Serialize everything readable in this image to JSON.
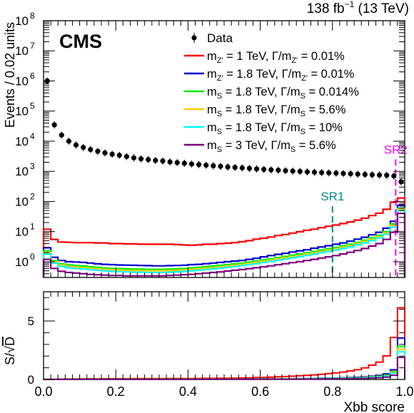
{
  "header": {
    "lumi_text": "138 fb",
    "lumi_sup": "−1",
    "energy_text": " (13 TeV)",
    "experiment": "CMS"
  },
  "chart_data": [
    {
      "type": "line",
      "panel": "main",
      "xlabel": "",
      "ylabel": "Events / 0.02 units",
      "xlim": [
        0.0,
        1.0
      ],
      "ylim": [
        0.3,
        100000000
      ],
      "yscale": "log",
      "yticks": [
        {
          "value": 1,
          "base": "10",
          "exp": "0"
        },
        {
          "value": 10,
          "base": "10",
          "exp": "1"
        },
        {
          "value": 100,
          "base": "10",
          "exp": "2"
        },
        {
          "value": 1000,
          "base": "10",
          "exp": "3"
        },
        {
          "value": 10000,
          "base": "10",
          "exp": "4"
        },
        {
          "value": 100000,
          "base": "10",
          "exp": "5"
        },
        {
          "value": 1000000,
          "base": "10",
          "exp": "6"
        },
        {
          "value": 10000000,
          "base": "10",
          "exp": "7"
        },
        {
          "value": 100000000,
          "base": "10",
          "exp": "8"
        }
      ],
      "legend_position": "top-right",
      "data_points": {
        "name": "Data",
        "x": [
          0.01,
          0.03,
          0.05,
          0.07,
          0.09,
          0.11,
          0.13,
          0.15,
          0.17,
          0.19,
          0.21,
          0.23,
          0.25,
          0.27,
          0.29,
          0.31,
          0.33,
          0.35,
          0.37,
          0.39,
          0.41,
          0.43,
          0.45,
          0.47,
          0.49,
          0.51,
          0.53,
          0.55,
          0.57,
          0.59,
          0.61,
          0.63,
          0.65,
          0.67,
          0.69,
          0.71,
          0.73,
          0.75,
          0.77,
          0.79,
          0.81,
          0.83,
          0.85,
          0.87,
          0.89,
          0.91,
          0.93,
          0.95,
          0.97,
          0.99
        ],
        "y": [
          1000000,
          35000,
          16000,
          10000,
          7500,
          6200,
          5300,
          4600,
          4100,
          3700,
          3400,
          3100,
          2800,
          2600,
          2450,
          2300,
          2200,
          2050,
          1950,
          1850,
          1750,
          1680,
          1600,
          1530,
          1460,
          1400,
          1350,
          1300,
          1250,
          1200,
          1160,
          1120,
          1090,
          1050,
          1020,
          990,
          960,
          935,
          910,
          890,
          870,
          850,
          830,
          810,
          790,
          770,
          755,
          740,
          700,
          450
        ]
      },
      "bin_edges": [
        0.0,
        0.02,
        0.04,
        0.06,
        0.08,
        0.1,
        0.12,
        0.14,
        0.16,
        0.18,
        0.2,
        0.22,
        0.24,
        0.26,
        0.28,
        0.3,
        0.32,
        0.34,
        0.36,
        0.38,
        0.4,
        0.42,
        0.44,
        0.46,
        0.48,
        0.5,
        0.52,
        0.54,
        0.56,
        0.58,
        0.6,
        0.62,
        0.64,
        0.66,
        0.68,
        0.7,
        0.72,
        0.74,
        0.76,
        0.78,
        0.8,
        0.82,
        0.84,
        0.86,
        0.88,
        0.9,
        0.92,
        0.94,
        0.96,
        0.98,
        1.0
      ],
      "series": [
        {
          "label_main": "m",
          "label_sub": "Z′",
          "label_rest": " = 1 TeV,  Γ/m",
          "label_sub2": "Z′",
          "label_end": " = 0.01%",
          "color": "#ff0000",
          "values": [
            12,
            5.5,
            4.5,
            4.4,
            4.3,
            4.3,
            4.3,
            4.2,
            4.2,
            4.0,
            4.0,
            3.9,
            3.9,
            3.8,
            3.8,
            3.8,
            3.8,
            3.8,
            3.7,
            3.6,
            3.5,
            3.6,
            3.8,
            3.8,
            4.0,
            4.1,
            4.3,
            4.6,
            5.0,
            5.6,
            6.0,
            6.6,
            7.4,
            8.0,
            8.9,
            9.9,
            11,
            12,
            13.5,
            15,
            16.5,
            18.5,
            21,
            24,
            28,
            34,
            41,
            55,
            95,
            130
          ]
        },
        {
          "label_main": "m",
          "label_sub": "Z′",
          "label_rest": " = 1.8 TeV,  Γ/m",
          "label_sub2": "Z′",
          "label_end": " = 0.01%",
          "color": "#0000d0",
          "values": [
            2.9,
            1.4,
            1.1,
            1.0,
            0.98,
            0.95,
            0.9,
            0.85,
            0.82,
            0.8,
            0.78,
            0.77,
            0.76,
            0.75,
            0.74,
            0.73,
            0.73,
            0.74,
            0.75,
            0.76,
            0.8,
            0.82,
            0.86,
            0.9,
            0.95,
            1.0,
            1.05,
            1.1,
            1.2,
            1.3,
            1.45,
            1.6,
            1.75,
            1.9,
            2.1,
            2.3,
            2.5,
            2.8,
            3.1,
            3.4,
            3.8,
            4.2,
            4.8,
            5.6,
            6.5,
            7.8,
            9.5,
            13,
            22,
            75
          ]
        },
        {
          "label_main": "m",
          "label_sub": "S",
          "label_rest": " = 1.8 TeV,  Γ/m",
          "label_sub2": "S",
          "label_end": " = 0.014%",
          "color": "#00ee00",
          "values": [
            2.3,
            1.1,
            0.85,
            0.78,
            0.75,
            0.72,
            0.68,
            0.65,
            0.62,
            0.6,
            0.59,
            0.58,
            0.57,
            0.57,
            0.56,
            0.56,
            0.56,
            0.57,
            0.58,
            0.6,
            0.62,
            0.65,
            0.68,
            0.72,
            0.76,
            0.8,
            0.85,
            0.9,
            0.98,
            1.05,
            1.15,
            1.25,
            1.38,
            1.5,
            1.65,
            1.8,
            2.0,
            2.2,
            2.45,
            2.7,
            3.0,
            3.4,
            3.8,
            4.4,
            5.2,
            6.2,
            7.6,
            10,
            18,
            60
          ]
        },
        {
          "label_main": "m",
          "label_sub": "S",
          "label_rest": " = 1.8 TeV,  Γ/m",
          "label_sub2": "S",
          "label_end": " = 5.6%",
          "color": "#ffcc00",
          "values": [
            2.0,
            1.0,
            0.78,
            0.7,
            0.67,
            0.64,
            0.61,
            0.58,
            0.56,
            0.54,
            0.53,
            0.52,
            0.51,
            0.51,
            0.5,
            0.5,
            0.5,
            0.51,
            0.52,
            0.54,
            0.56,
            0.58,
            0.61,
            0.64,
            0.68,
            0.72,
            0.76,
            0.82,
            0.88,
            0.95,
            1.04,
            1.13,
            1.24,
            1.35,
            1.48,
            1.62,
            1.8,
            2.0,
            2.2,
            2.45,
            2.7,
            3.05,
            3.45,
            4.0,
            4.7,
            5.6,
            6.8,
            9.0,
            16,
            55
          ]
        },
        {
          "label_main": "m",
          "label_sub": "S",
          "label_rest": " = 1.8 TeV,  Γ/m",
          "label_sub2": "S",
          "label_end": " = 10%",
          "color": "#00ffff",
          "values": [
            1.8,
            0.9,
            0.7,
            0.63,
            0.6,
            0.57,
            0.55,
            0.52,
            0.5,
            0.48,
            0.47,
            0.46,
            0.45,
            0.45,
            0.44,
            0.44,
            0.44,
            0.45,
            0.46,
            0.48,
            0.5,
            0.52,
            0.55,
            0.58,
            0.61,
            0.65,
            0.69,
            0.74,
            0.8,
            0.86,
            0.94,
            1.02,
            1.12,
            1.22,
            1.34,
            1.46,
            1.62,
            1.8,
            2.0,
            2.2,
            2.45,
            2.75,
            3.1,
            3.6,
            4.2,
            5.0,
            6.1,
            8.2,
            14,
            50
          ]
        },
        {
          "label_main": "m",
          "label_sub": "S",
          "label_rest": " = 3 TeV,  Γ/m",
          "label_sub2": "S",
          "label_end": " = 5.6%",
          "color": "#7f007f",
          "values": [
            1.2,
            0.6,
            0.48,
            0.44,
            0.42,
            0.4,
            0.38,
            0.37,
            0.36,
            0.35,
            0.35,
            0.34,
            0.34,
            0.34,
            0.34,
            0.34,
            0.34,
            0.35,
            0.36,
            0.37,
            0.38,
            0.4,
            0.42,
            0.44,
            0.46,
            0.49,
            0.52,
            0.55,
            0.59,
            0.63,
            0.68,
            0.73,
            0.79,
            0.86,
            0.93,
            1.0,
            1.1,
            1.2,
            1.32,
            1.45,
            1.6,
            1.8,
            2.05,
            2.35,
            2.75,
            3.3,
            4.0,
            5.5,
            9.5,
            40
          ]
        }
      ],
      "regions": [
        {
          "label": "SR1",
          "x": 0.8,
          "color": "#008b8b",
          "y_top": 70
        },
        {
          "label": "SR2",
          "x": 0.975,
          "color": "#ff00ff",
          "y_top": 2500
        }
      ]
    },
    {
      "type": "line",
      "panel": "ratio",
      "xlabel": "Xbb score",
      "ylabel_prefix": "S/",
      "ylabel_root": "D",
      "xlim": [
        0.0,
        1.0
      ],
      "ylim": [
        0,
        7.5
      ],
      "xticks": [
        "0.0",
        "0.2",
        "0.4",
        "0.6",
        "0.8",
        "1.0"
      ],
      "yticks": [
        "0",
        "5"
      ],
      "series": [
        {
          "color": "#ff0000",
          "values": [
            0.012,
            0.03,
            0.035,
            0.044,
            0.05,
            0.055,
            0.06,
            0.062,
            0.066,
            0.066,
            0.069,
            0.07,
            0.074,
            0.075,
            0.077,
            0.079,
            0.081,
            0.084,
            0.084,
            0.084,
            0.084,
            0.088,
            0.095,
            0.097,
            0.105,
            0.11,
            0.117,
            0.128,
            0.141,
            0.162,
            0.176,
            0.197,
            0.224,
            0.247,
            0.279,
            0.315,
            0.355,
            0.392,
            0.447,
            0.503,
            0.559,
            0.634,
            0.729,
            0.843,
            0.996,
            1.225,
            1.49,
            2.02,
            3.59,
            6.13
          ]
        },
        {
          "color": "#0000d0",
          "values": [
            0.003,
            0.007,
            0.009,
            0.01,
            0.011,
            0.012,
            0.012,
            0.013,
            0.013,
            0.013,
            0.013,
            0.014,
            0.014,
            0.015,
            0.015,
            0.015,
            0.016,
            0.016,
            0.017,
            0.018,
            0.019,
            0.02,
            0.021,
            0.023,
            0.025,
            0.027,
            0.029,
            0.031,
            0.034,
            0.038,
            0.043,
            0.048,
            0.053,
            0.059,
            0.066,
            0.073,
            0.081,
            0.092,
            0.103,
            0.114,
            0.129,
            0.144,
            0.167,
            0.197,
            0.231,
            0.281,
            0.346,
            0.478,
            0.831,
            3.54
          ]
        },
        {
          "color": "#00ee00",
          "values": [
            0.002,
            0.006,
            0.007,
            0.008,
            0.009,
            0.009,
            0.009,
            0.01,
            0.01,
            0.01,
            0.01,
            0.01,
            0.011,
            0.011,
            0.011,
            0.012,
            0.012,
            0.013,
            0.013,
            0.014,
            0.015,
            0.016,
            0.017,
            0.018,
            0.02,
            0.021,
            0.023,
            0.025,
            0.028,
            0.03,
            0.034,
            0.037,
            0.042,
            0.046,
            0.052,
            0.057,
            0.065,
            0.072,
            0.081,
            0.091,
            0.102,
            0.117,
            0.132,
            0.155,
            0.185,
            0.223,
            0.277,
            0.368,
            0.68,
            2.83
          ]
        },
        {
          "color": "#ffcc00",
          "values": [
            0.002,
            0.005,
            0.006,
            0.007,
            0.008,
            0.008,
            0.008,
            0.009,
            0.009,
            0.009,
            0.009,
            0.009,
            0.01,
            0.01,
            0.01,
            0.01,
            0.011,
            0.011,
            0.012,
            0.013,
            0.013,
            0.014,
            0.015,
            0.016,
            0.018,
            0.019,
            0.021,
            0.023,
            0.025,
            0.027,
            0.031,
            0.034,
            0.038,
            0.042,
            0.046,
            0.051,
            0.058,
            0.065,
            0.073,
            0.082,
            0.092,
            0.105,
            0.12,
            0.141,
            0.167,
            0.202,
            0.247,
            0.331,
            0.605,
            2.59
          ]
        },
        {
          "color": "#00ffff",
          "values": [
            0.002,
            0.005,
            0.006,
            0.006,
            0.007,
            0.007,
            0.008,
            0.008,
            0.008,
            0.008,
            0.008,
            0.008,
            0.009,
            0.009,
            0.009,
            0.009,
            0.009,
            0.01,
            0.01,
            0.011,
            0.012,
            0.013,
            0.014,
            0.015,
            0.016,
            0.017,
            0.019,
            0.021,
            0.023,
            0.025,
            0.028,
            0.03,
            0.034,
            0.038,
            0.042,
            0.046,
            0.052,
            0.059,
            0.066,
            0.074,
            0.083,
            0.094,
            0.108,
            0.126,
            0.149,
            0.18,
            0.222,
            0.301,
            0.529,
            2.36
          ]
        },
        {
          "color": "#7f007f",
          "values": [
            0.001,
            0.003,
            0.004,
            0.004,
            0.005,
            0.005,
            0.005,
            0.005,
            0.006,
            0.006,
            0.006,
            0.006,
            0.006,
            0.007,
            0.007,
            0.007,
            0.007,
            0.008,
            0.008,
            0.009,
            0.009,
            0.01,
            0.011,
            0.011,
            0.012,
            0.013,
            0.014,
            0.015,
            0.017,
            0.018,
            0.02,
            0.022,
            0.024,
            0.027,
            0.029,
            0.032,
            0.035,
            0.039,
            0.044,
            0.049,
            0.054,
            0.062,
            0.071,
            0.083,
            0.098,
            0.119,
            0.146,
            0.202,
            0.359,
            1.89
          ]
        }
      ]
    }
  ]
}
